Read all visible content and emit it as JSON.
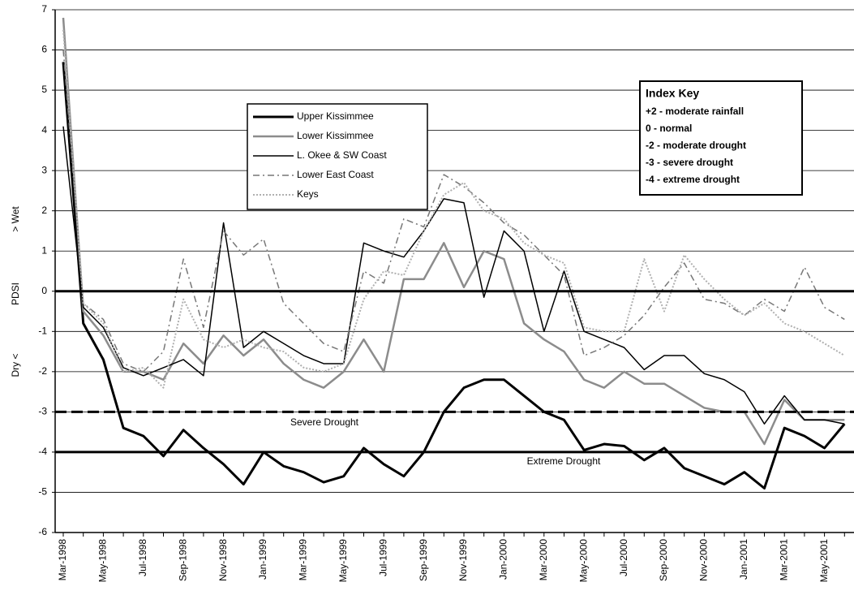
{
  "chart_data": {
    "type": "line",
    "ylabel": [
      "Dry <",
      "PDSI",
      "> Wet"
    ],
    "categories": [
      "Mar-1998",
      null,
      "May-1998",
      null,
      "Jul-1998",
      null,
      "Sep-1998",
      null,
      "Nov-1998",
      null,
      "Jan-1999",
      null,
      "Mar-1999",
      null,
      "May-1999",
      null,
      "Jul-1999",
      null,
      "Sep-1999",
      null,
      "Nov-1999",
      null,
      "Jan-2000",
      null,
      "Mar-2000",
      null,
      "May-2000",
      null,
      "Jul-2000",
      null,
      "Sep-2000",
      null,
      "Nov-2000",
      null,
      "Jan-2001",
      null,
      "Mar-2001",
      null,
      "May-2001",
      null
    ],
    "series": [
      {
        "name": "Upper Kissimmee",
        "color": "#000000",
        "linestyle": "solid",
        "linewidth": 3,
        "values": [
          5.7,
          -0.8,
          -1.7,
          -3.4,
          -3.6,
          -4.1,
          -3.45,
          -3.9,
          -4.3,
          -4.8,
          -4.0,
          -4.35,
          -4.5,
          -4.75,
          -4.6,
          -3.9,
          -4.3,
          -4.6,
          -4.0,
          -3.0,
          -2.4,
          -2.2,
          -2.2,
          -2.6,
          -3.0,
          -3.2,
          -3.95,
          -3.8,
          -3.85,
          -4.2,
          -3.9,
          -4.4,
          -4.6,
          -4.8,
          -4.5,
          -4.9,
          -3.4,
          -3.6,
          -3.9,
          -3.3
        ]
      },
      {
        "name": "Lower Kissimmee",
        "color": "#8c8c8c",
        "linestyle": "solid",
        "linewidth": 2.5,
        "values": [
          6.8,
          -0.5,
          -1.1,
          -2.0,
          -2.0,
          -2.2,
          -1.3,
          -1.8,
          -1.1,
          -1.6,
          -1.2,
          -1.8,
          -2.2,
          -2.4,
          -2.0,
          -1.2,
          -2.0,
          0.3,
          0.3,
          1.2,
          0.1,
          1.0,
          0.8,
          -0.8,
          -1.2,
          -1.5,
          -2.2,
          -2.4,
          -2.0,
          -2.3,
          -2.3,
          -2.6,
          -2.9,
          -3.0,
          -3.0,
          -3.8,
          -2.7,
          -3.2,
          -3.2,
          -3.2
        ]
      },
      {
        "name": "L. Okee & SW Coast",
        "color": "#000000",
        "linestyle": "solid",
        "linewidth": 1.5,
        "values": [
          4.1,
          -0.4,
          -0.9,
          -1.9,
          -2.1,
          -1.9,
          -1.7,
          -2.1,
          1.7,
          -1.4,
          -1.0,
          -1.3,
          -1.6,
          -1.8,
          -1.8,
          1.2,
          1.0,
          0.85,
          1.5,
          2.3,
          2.2,
          -0.15,
          1.5,
          1.0,
          -1.0,
          0.5,
          -1.0,
          -1.2,
          -1.4,
          -1.95,
          -1.6,
          -1.6,
          -2.05,
          -2.2,
          -2.5,
          -3.3,
          -2.6,
          -3.2,
          -3.2,
          -3.3
        ]
      },
      {
        "name": "Lower East Coast",
        "color": "#777777",
        "linestyle": "dashdot",
        "linewidth": 1.5,
        "values": [
          6.0,
          -0.3,
          -0.7,
          -1.8,
          -2.0,
          -1.5,
          0.8,
          -0.9,
          1.5,
          0.9,
          1.3,
          -0.3,
          -0.8,
          -1.3,
          -1.5,
          0.5,
          0.2,
          1.8,
          1.6,
          2.9,
          2.6,
          2.2,
          1.7,
          1.4,
          0.9,
          0.4,
          -1.6,
          -1.4,
          -1.1,
          -0.6,
          0.1,
          0.7,
          -0.2,
          -0.3,
          -0.6,
          -0.2,
          -0.5,
          0.6,
          -0.4,
          -0.7
        ]
      },
      {
        "name": "Keys",
        "color": "#b0b0b0",
        "linestyle": "dotted",
        "linewidth": 2,
        "values": [
          6.5,
          -0.3,
          -0.8,
          -2.0,
          -1.9,
          -2.4,
          -0.2,
          -1.2,
          -1.4,
          -1.2,
          -1.4,
          -1.5,
          -1.9,
          -2.0,
          -1.8,
          -0.2,
          0.5,
          0.4,
          1.5,
          2.4,
          2.7,
          2.0,
          1.8,
          1.2,
          0.9,
          0.7,
          -0.9,
          -1.0,
          -1.0,
          0.8,
          -0.5,
          0.9,
          0.3,
          -0.2,
          -0.6,
          -0.3,
          -0.8,
          -1.0,
          -1.3,
          -1.6
        ]
      }
    ],
    "hlines": [
      {
        "value": 0,
        "linestyle": "solid"
      },
      {
        "value": -3,
        "linestyle": "dashed",
        "label": "Severe Drought"
      },
      {
        "value": -4,
        "linestyle": "solid",
        "label": "Extreme Drought"
      }
    ],
    "index_key": {
      "title": "Index Key",
      "items": [
        "+2 - moderate rainfall",
        "0 - normal",
        "-2 - moderate drought",
        "-3 - severe drought",
        "-4 - extreme drought"
      ]
    },
    "ylim": [
      -6,
      7
    ],
    "yticks": [
      -6,
      -5,
      -4,
      -3,
      -2,
      -1,
      0,
      1,
      2,
      3,
      4,
      5,
      6,
      7
    ],
    "grid": true
  }
}
